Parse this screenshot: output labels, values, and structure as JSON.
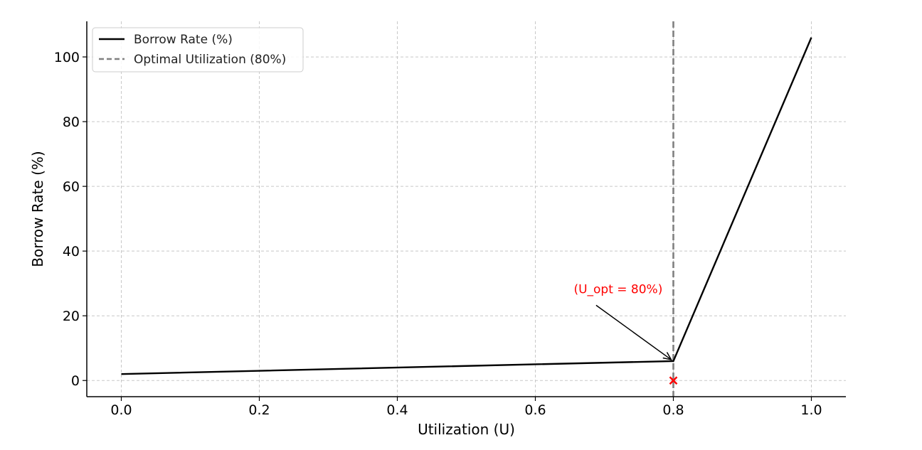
{
  "chart_data": {
    "type": "line",
    "title": "",
    "xlabel": "Utilization (U)",
    "ylabel": "Borrow Rate (%)",
    "xlim": [
      -0.05,
      1.05
    ],
    "ylim": [
      -5,
      111
    ],
    "xticks": [
      0.0,
      0.2,
      0.4,
      0.6,
      0.8,
      1.0
    ],
    "xtick_labels": [
      "0.0",
      "0.2",
      "0.4",
      "0.6",
      "0.8",
      "1.0"
    ],
    "yticks": [
      0,
      20,
      40,
      60,
      80,
      100
    ],
    "ytick_labels": [
      "0",
      "20",
      "40",
      "60",
      "80",
      "100"
    ],
    "grid": true,
    "legend_position": "top-left",
    "series": [
      {
        "name": "Borrow Rate (%)",
        "color": "#000000",
        "style": "solid",
        "x": [
          0.0,
          0.8,
          1.0
        ],
        "y": [
          2,
          6,
          106
        ]
      }
    ],
    "vlines": [
      {
        "name": "Optimal Utilization (80%)",
        "x": 0.8,
        "color": "#808080",
        "style": "dashed"
      }
    ],
    "markers": [
      {
        "x": 0.8,
        "y": 0,
        "symbol": "x",
        "color": "#ff0000"
      }
    ],
    "annotations": [
      {
        "text": "(U_opt = 80%)",
        "color": "#ff0000",
        "point": {
          "x": 0.8,
          "y": 6
        },
        "text_at": {
          "x": 0.72,
          "y": 27
        }
      }
    ]
  }
}
